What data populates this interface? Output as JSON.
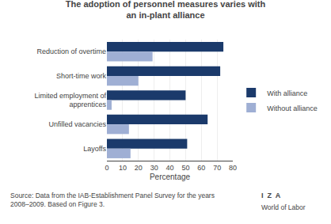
{
  "chart_data": {
    "type": "bar",
    "orientation": "horizontal",
    "title": "The adoption of personnel measures varies with\nan in-plant alliance",
    "categories": [
      "Reduction of overtime",
      "Short-time work",
      "Limited employment of\napprentices",
      "Unfilled vacancies",
      "Layoffs"
    ],
    "series": [
      {
        "name": "With alliance",
        "color": "#1b3a6b",
        "values": [
          74,
          72,
          50,
          64,
          51
        ]
      },
      {
        "name": "Without alliance",
        "color": "#9fafd4",
        "values": [
          29,
          20,
          3,
          14,
          15
        ]
      }
    ],
    "xlabel": "Percentage",
    "xlim": [
      0,
      80
    ],
    "xticks": [
      0,
      10,
      20,
      30,
      40,
      50,
      60,
      70,
      80
    ],
    "grid": true,
    "legend": "right",
    "annotations": [
      "Source: Data from the IAB-Establishment Panel Survey for the years\n2008–2009. Based on Figure 3.",
      "I  Z  A",
      "World of Labor"
    ]
  }
}
